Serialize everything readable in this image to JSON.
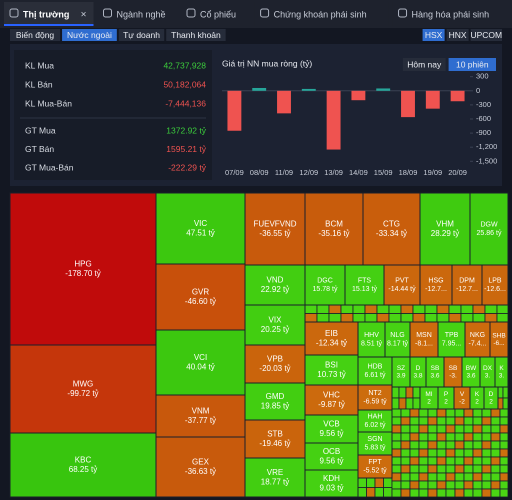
{
  "tabs": [
    "Thị trường",
    "Ngành nghề",
    "Cổ phiếu",
    "Chứng khoán phái sinh",
    "Hàng hóa phái sinh"
  ],
  "active_tab": 0,
  "subtabs": [
    "Biến động",
    "Nước ngoài",
    "Tự doanh",
    "Thanh khoản"
  ],
  "active_subtab": 1,
  "exchanges": [
    "HSX",
    "HNX",
    "UPCOM"
  ],
  "active_exchange": 0,
  "stats": [
    {
      "label": "KL Mua",
      "value": "42,737,928",
      "color": "#3ccc3c"
    },
    {
      "label": "KL Bán",
      "value": "50,182,064",
      "color": "#ef5350"
    },
    {
      "label": "KL Mua-Bán",
      "value": "-7,444,136",
      "color": "#ef5350"
    },
    {
      "label": "GT Mua",
      "value": "1372.92 tỷ",
      "color": "#3ccc3c"
    },
    {
      "label": "GT Bán",
      "value": "1595.21 tỷ",
      "color": "#ef5350"
    },
    {
      "label": "GT Mua-Bán",
      "value": "-222.29 tỷ",
      "color": "#ef5350"
    }
  ],
  "period_buttons": [
    "Hôm nay",
    "10 phiên"
  ],
  "active_period": 1,
  "chart_data": {
    "type": "bar",
    "title": "Giá trị NN mua ròng (tỷ)",
    "categories": [
      "07/09",
      "08/09",
      "11/09",
      "12/09",
      "13/09",
      "14/09",
      "15/09",
      "18/09",
      "19/09",
      "20/09"
    ],
    "values": [
      -850,
      60,
      -480,
      40,
      -1250,
      -200,
      50,
      -560,
      -380,
      -222.29
    ],
    "colors": {
      "positive": "#26a69a",
      "negative": "#ef5350"
    },
    "ylim": [
      -1600,
      400
    ],
    "yticks": [
      300,
      0,
      -300,
      -600,
      -900,
      {
        "value": -1200,
        "label": "-1,200"
      },
      {
        "value": -1500,
        "label": "-1,500"
      }
    ]
  },
  "treemap": [
    {
      "name": "HPG",
      "value": -178.7,
      "value_label": "-178.70 tỷ",
      "color": "#c00b0b"
    },
    {
      "name": "MWG",
      "value": -99.72,
      "value_label": "-99.72 tỷ",
      "color": "#c5360b"
    },
    {
      "name": "KBC",
      "value": 68.25,
      "value_label": "68.25 tỷ",
      "color": "#38c50e"
    },
    {
      "name": "VIC",
      "value": 47.51,
      "value_label": "47.51 tỷ",
      "color": "#3cc80f"
    },
    {
      "name": "GVR",
      "value": -46.6,
      "value_label": "-46.60 tỷ",
      "color": "#c8500b"
    },
    {
      "name": "VCI",
      "value": 40.04,
      "value_label": "40.04 tỷ",
      "color": "#3cc80f"
    },
    {
      "name": "VNM",
      "value": -37.77,
      "value_label": "-37.77 tỷ",
      "color": "#c8580c"
    },
    {
      "name": "GEX",
      "value": -36.63,
      "value_label": "-36.63 tỷ",
      "color": "#c85a0c"
    },
    {
      "name": "FUEVFVND",
      "value": -36.55,
      "value_label": "-36.55 tỷ",
      "color": "#c85a0c"
    },
    {
      "name": "BCM",
      "value": -35.16,
      "value_label": "-35.16 tỷ",
      "color": "#c85c0c"
    },
    {
      "name": "CTG",
      "value": -33.34,
      "value_label": "-33.34 tỷ",
      "color": "#c95e0c"
    },
    {
      "name": "VHM",
      "value": 28.29,
      "value_label": "28.29 tỷ",
      "color": "#3fcb10"
    },
    {
      "name": "DGW",
      "value": 25.86,
      "value_label": "25.86 tỷ",
      "color": "#3fcb10"
    },
    {
      "name": "VND",
      "value": 22.92,
      "value_label": "22.92 tỷ",
      "color": "#42ce11"
    },
    {
      "name": "VIX",
      "value": 20.25,
      "value_label": "20.25 tỷ",
      "color": "#42ce11"
    },
    {
      "name": "VPB",
      "value": -20.03,
      "value_label": "-20.03 tỷ",
      "color": "#ca640c"
    },
    {
      "name": "GMD",
      "value": 19.85,
      "value_label": "19.85 tỷ",
      "color": "#42ce11"
    },
    {
      "name": "STB",
      "value": -19.46,
      "value_label": "-19.46 tỷ",
      "color": "#ca640c"
    },
    {
      "name": "VRE",
      "value": 18.77,
      "value_label": "18.77 tỷ",
      "color": "#42ce11"
    },
    {
      "name": "DGC",
      "value": 15.78,
      "value_label": "15.78 tỷ",
      "color": "#44d012"
    },
    {
      "name": "FTS",
      "value": 15.13,
      "value_label": "15.13 tỷ",
      "color": "#44d012"
    },
    {
      "name": "PVT",
      "value": -14.44,
      "value_label": "-14.44 tỷ",
      "color": "#cb670d"
    },
    {
      "name": "HSG",
      "value": -12.7,
      "value_label": "-12.7...",
      "color": "#cb680d"
    },
    {
      "name": "DPM",
      "value": -12.7,
      "value_label": "-12.7...",
      "color": "#cb680d"
    },
    {
      "name": "LPB",
      "value": -12.6,
      "value_label": "-12.6...",
      "color": "#cb680d"
    },
    {
      "name": "EIB",
      "value": -12.34,
      "value_label": "-12.34 tỷ",
      "color": "#cb680d"
    },
    {
      "name": "HHV",
      "value": 8.51,
      "value_label": "8.51 tỷ",
      "color": "#46d213"
    },
    {
      "name": "NLG",
      "value": 8.17,
      "value_label": "8.17 tỷ",
      "color": "#46d213"
    },
    {
      "name": "MSN",
      "value": -8.1,
      "value_label": "-8.1...",
      "color": "#cc6b0d"
    },
    {
      "name": "TPB",
      "value": 7.95,
      "value_label": "7.95...",
      "color": "#46d213"
    },
    {
      "name": "NKG",
      "value": -7.4,
      "value_label": "-7.4...",
      "color": "#cc6b0d"
    },
    {
      "name": "SHB",
      "value": -6,
      "value_label": "-6...",
      "color": "#cc6b0d"
    },
    {
      "name": "BSI",
      "value": 10.73,
      "value_label": "10.73 tỷ",
      "color": "#45d112"
    },
    {
      "name": "VHC",
      "value": -9.87,
      "value_label": "-9.87 tỷ",
      "color": "#cc6a0d"
    },
    {
      "name": "VCB",
      "value": 9.56,
      "value_label": "9.56 tỷ",
      "color": "#45d112"
    },
    {
      "name": "OCB",
      "value": 9.56,
      "value_label": "9.56 tỷ",
      "color": "#45d112"
    },
    {
      "name": "KDH",
      "value": 9.03,
      "value_label": "9.03 tỷ",
      "color": "#45d112"
    },
    {
      "name": "HDB",
      "value": 6.61,
      "value_label": "6.61 tỷ",
      "color": "#47d313"
    },
    {
      "name": "NT2",
      "value": -6.59,
      "value_label": "-6.59 tỷ",
      "color": "#cc6c0d"
    },
    {
      "name": "HAH",
      "value": 6.02,
      "value_label": "6.02 tỷ",
      "color": "#47d313"
    },
    {
      "name": "SGN",
      "value": 5.83,
      "value_label": "5.83 tỷ",
      "color": "#47d313"
    },
    {
      "name": "FPT",
      "value": -5.52,
      "value_label": "-5.52 tỷ",
      "color": "#cc6c0d"
    },
    {
      "name": "SZ",
      "value": 3.9,
      "value_label": "3.9",
      "color": "#48d413"
    },
    {
      "name": "D",
      "value": 3.8,
      "value_label": "3.8",
      "color": "#48d413"
    },
    {
      "name": "SB",
      "value": 3.6,
      "value_label": "3.6",
      "color": "#48d413"
    },
    {
      "name": "SB",
      "value": -3,
      "value_label": "-3.",
      "color": "#cd6e0d"
    },
    {
      "name": "BW",
      "value": 3.6,
      "value_label": "3.6",
      "color": "#48d413"
    },
    {
      "name": "DX",
      "value": 3,
      "value_label": "3.",
      "color": "#48d413"
    },
    {
      "name": "K",
      "value": 3,
      "value_label": "3.",
      "color": "#48d413"
    },
    {
      "name": "MI",
      "value": 2,
      "value_label": "2",
      "color": "#49d514"
    },
    {
      "name": "P",
      "value": 2,
      "value_label": "2",
      "color": "#49d514"
    },
    {
      "name": "V",
      "value": -2,
      "value_label": "-2",
      "color": "#cd6e0d"
    },
    {
      "name": "K",
      "value": 2,
      "value_label": "2",
      "color": "#49d514"
    },
    {
      "name": "D",
      "value": 2,
      "value_label": "2",
      "color": "#49d514"
    }
  ]
}
